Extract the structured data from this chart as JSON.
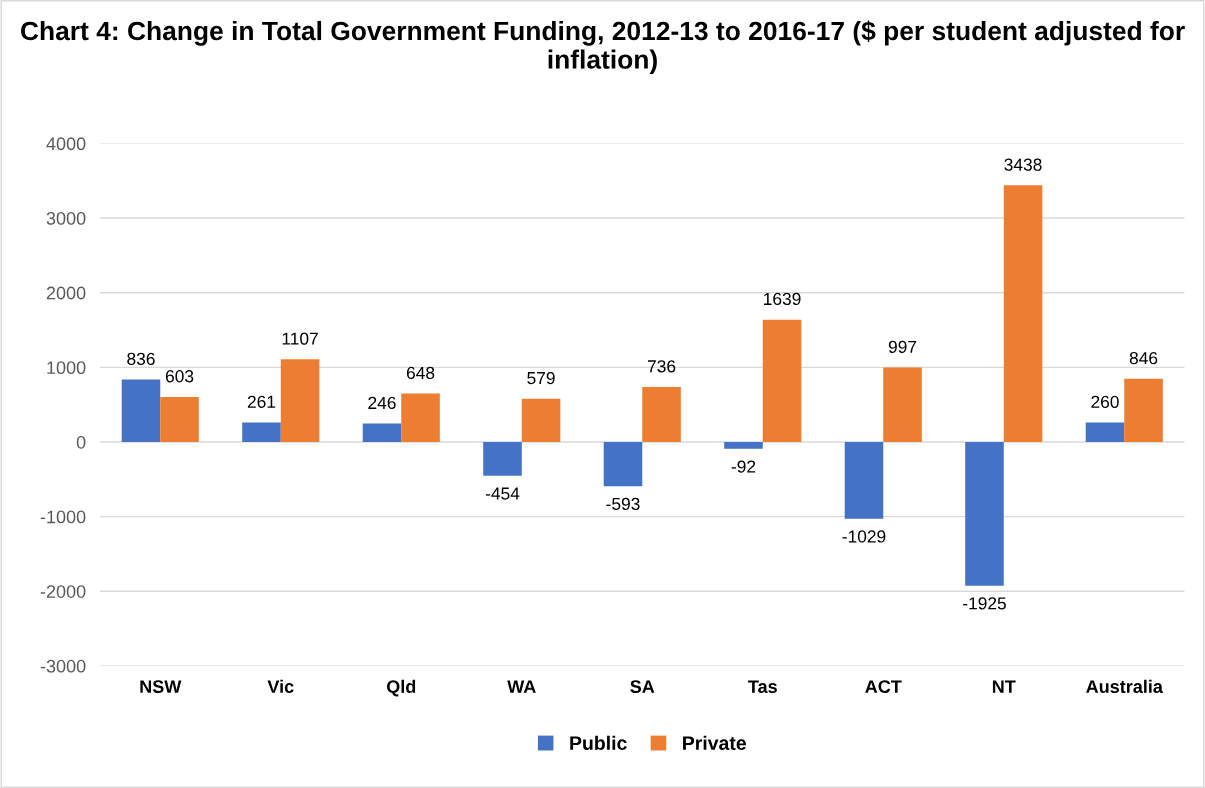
{
  "chart_data": {
    "type": "bar",
    "title": "Chart 4: Change in Total Government Funding, 2012-13 to 2016-17 ($ per student adjusted for inflation)",
    "categories": [
      "NSW",
      "Vic",
      "Qld",
      "WA",
      "SA",
      "Tas",
      "ACT",
      "NT",
      "Australia"
    ],
    "series": [
      {
        "name": "Public",
        "color": "#4472c4",
        "values": [
          836,
          261,
          246,
          -454,
          -593,
          -92,
          -1029,
          -1925,
          260
        ]
      },
      {
        "name": "Private",
        "color": "#ed7d31",
        "values": [
          603,
          1107,
          648,
          579,
          736,
          1639,
          997,
          3438,
          846
        ]
      }
    ],
    "ylim": [
      -3000,
      4000
    ],
    "yticks": [
      -3000,
      -2000,
      -1000,
      0,
      1000,
      2000,
      3000,
      4000
    ],
    "grid": "y",
    "legend": "bottom",
    "data_labels": true
  }
}
